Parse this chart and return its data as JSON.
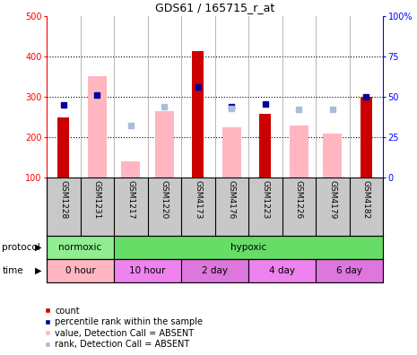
{
  "title": "GDS61 / 165715_r_at",
  "samples": [
    "GSM1228",
    "GSM1231",
    "GSM1217",
    "GSM1220",
    "GSM4173",
    "GSM4176",
    "GSM1223",
    "GSM1226",
    "GSM4179",
    "GSM4182"
  ],
  "count_values": [
    248,
    null,
    null,
    null,
    413,
    null,
    258,
    null,
    null,
    300
  ],
  "rank_values": [
    280,
    305,
    null,
    null,
    325,
    275,
    282,
    null,
    null,
    300
  ],
  "absent_value": [
    null,
    352,
    140,
    265,
    null,
    225,
    null,
    228,
    210,
    null
  ],
  "absent_rank": [
    null,
    null,
    228,
    275,
    null,
    272,
    null,
    268,
    268,
    null
  ],
  "ylim_left": [
    100,
    500
  ],
  "ylim_right": [
    0,
    100
  ],
  "left_ticks": [
    100,
    200,
    300,
    400,
    500
  ],
  "right_ticks": [
    0,
    25,
    50,
    75,
    100
  ],
  "protocol_groups": [
    {
      "label": "normoxic",
      "start": 0,
      "end": 2,
      "color": "#90EE90"
    },
    {
      "label": "hypoxic",
      "start": 2,
      "end": 10,
      "color": "#66DD66"
    }
  ],
  "time_groups": [
    {
      "label": "0 hour",
      "start": 0,
      "end": 2,
      "color": "#FFB6C1"
    },
    {
      "label": "10 hour",
      "start": 2,
      "end": 4,
      "color": "#EE82EE"
    },
    {
      "label": "2 day",
      "start": 4,
      "end": 6,
      "color": "#DD77DD"
    },
    {
      "label": "4 day",
      "start": 6,
      "end": 8,
      "color": "#EE82EE"
    },
    {
      "label": "6 day",
      "start": 8,
      "end": 10,
      "color": "#DD77DD"
    }
  ],
  "count_color": "#CC0000",
  "rank_color": "#000099",
  "absent_val_color": "#FFB6C1",
  "absent_rank_color": "#AABBDD",
  "bg_color": "#FFFFFF",
  "label_area_color": "#C8C8C8",
  "absent_bar_width": 0.55,
  "count_bar_width": 0.35,
  "dotted_lines": [
    200,
    300,
    400
  ]
}
